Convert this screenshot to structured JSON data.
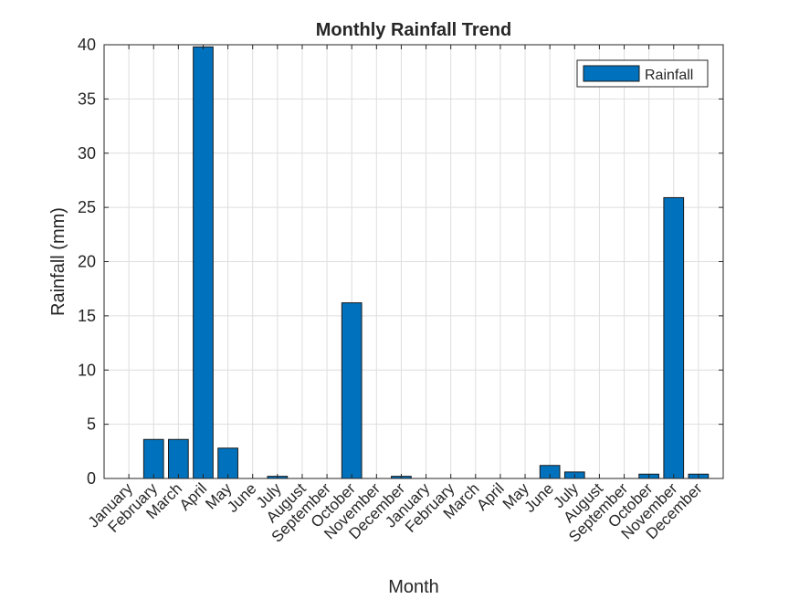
{
  "chart_data": {
    "type": "bar",
    "title": "Monthly Rainfall Trend",
    "xlabel": "Month",
    "ylabel": "Rainfall (mm)",
    "ylim": [
      0,
      40
    ],
    "yticks": [
      0,
      5,
      10,
      15,
      20,
      25,
      30,
      35,
      40
    ],
    "grid": true,
    "legend_position": "top-right",
    "categories": [
      "January",
      "February",
      "March",
      "April",
      "May",
      "June",
      "July",
      "August",
      "September",
      "October",
      "November",
      "December",
      "January",
      "February",
      "March",
      "April",
      "May",
      "June",
      "July",
      "August",
      "September",
      "October",
      "November",
      "December"
    ],
    "series": [
      {
        "name": "Rainfall",
        "color": "#0072BD",
        "values": [
          0,
          3.6,
          3.6,
          39.8,
          2.8,
          0,
          0.2,
          0,
          0,
          16.2,
          0,
          0.2,
          0,
          0,
          0,
          0,
          0,
          1.2,
          0.6,
          0,
          0,
          0.4,
          25.9,
          0.4
        ]
      }
    ]
  }
}
